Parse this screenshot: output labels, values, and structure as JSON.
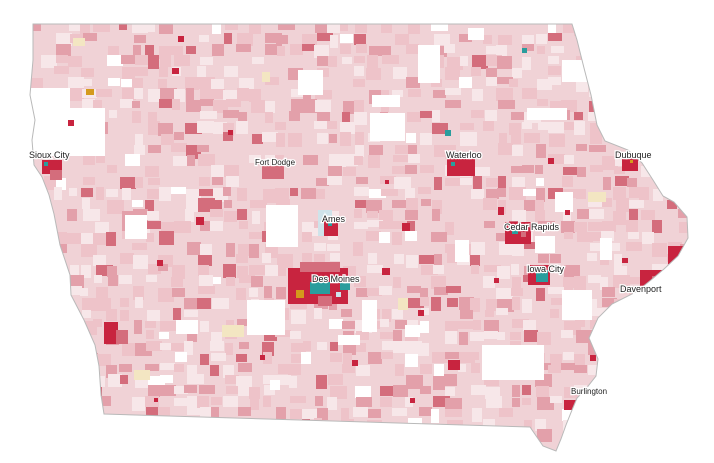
{
  "map": {
    "region": "Iowa",
    "colors": {
      "state_fill": "#f0d2d6",
      "state_outline": "#b9b9b9",
      "pale": "#f7e7e9",
      "light": "#eec3c9",
      "medium": "#e3a0aa",
      "strong": "#d46d7c",
      "dense_red": "#c8243f",
      "teal": "#2a9d9d",
      "gold": "#d49a1c",
      "cream": "#f3e6c2",
      "light_blue": "#cfe3ea",
      "white": "#ffffff"
    },
    "cities": [
      {
        "id": "sioux-city",
        "name": "Sioux City"
      },
      {
        "id": "fort-dodge",
        "name": "Fort Dodge"
      },
      {
        "id": "waterloo",
        "name": "Waterloo"
      },
      {
        "id": "dubuque",
        "name": "Dubuque"
      },
      {
        "id": "ames",
        "name": "Ames"
      },
      {
        "id": "cedar-rapids",
        "name": "Cedar Rapids"
      },
      {
        "id": "iowa-city",
        "name": "Iowa City"
      },
      {
        "id": "des-moines",
        "name": "Des Moines"
      },
      {
        "id": "davenport",
        "name": "Davenport"
      },
      {
        "id": "burlington",
        "name": "Burlington"
      }
    ]
  }
}
